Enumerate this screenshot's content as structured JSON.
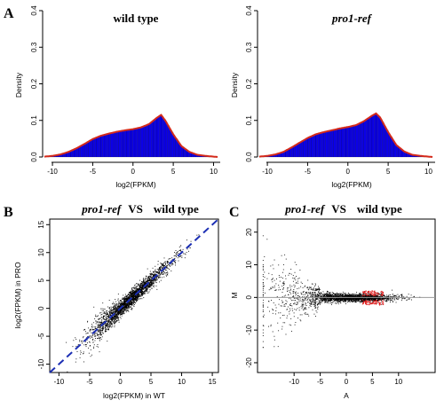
{
  "panels": {
    "A": {
      "letter": "A"
    },
    "B": {
      "letter": "B"
    },
    "C": {
      "letter": "C"
    }
  },
  "colors": {
    "bar": "#0b00e8",
    "density_line": "#d42a1b",
    "point": "#000000",
    "highlight": "#e01c1c",
    "diagonal": "#1c2fb4",
    "hline": "#999999"
  },
  "chart_data": [
    {
      "id": "hist-wt",
      "type": "histogram",
      "title": "wild type",
      "xlabel": "log2(FPKM)",
      "ylabel": "Density",
      "xlim": [
        -11,
        10.5
      ],
      "ylim": [
        0,
        0.4
      ],
      "xticks": [
        -10,
        -5,
        0,
        5,
        10
      ],
      "yticks": [
        0.0,
        0.1,
        0.2,
        0.3,
        0.4
      ],
      "density": {
        "x": [
          -11,
          -10,
          -9,
          -8,
          -7,
          -6,
          -5,
          -4,
          -3,
          -2,
          -1,
          0,
          1,
          2,
          3,
          3.5,
          4,
          5,
          6,
          7,
          8,
          9,
          10,
          10.5
        ],
        "y": [
          0.001,
          0.003,
          0.007,
          0.014,
          0.024,
          0.036,
          0.049,
          0.058,
          0.064,
          0.069,
          0.073,
          0.076,
          0.081,
          0.09,
          0.108,
          0.115,
          0.1,
          0.062,
          0.03,
          0.014,
          0.006,
          0.003,
          0.001,
          0.0
        ]
      }
    },
    {
      "id": "hist-pro",
      "type": "histogram",
      "title": "pro1-ref",
      "xlabel": "log2(FPKM)",
      "ylabel": "Density",
      "xlim": [
        -11,
        10.5
      ],
      "ylim": [
        0,
        0.4
      ],
      "xticks": [
        -10,
        -5,
        0,
        5,
        10
      ],
      "yticks": [
        0.0,
        0.1,
        0.2,
        0.3,
        0.4
      ],
      "density": {
        "x": [
          -11,
          -10,
          -9,
          -8,
          -7,
          -6,
          -5,
          -4,
          -3,
          -2,
          -1,
          0,
          1,
          2,
          3,
          3.5,
          4,
          5,
          6,
          7,
          8,
          9,
          10,
          10.5
        ],
        "y": [
          0.001,
          0.003,
          0.007,
          0.014,
          0.026,
          0.039,
          0.052,
          0.062,
          0.068,
          0.073,
          0.078,
          0.082,
          0.087,
          0.098,
          0.113,
          0.119,
          0.108,
          0.068,
          0.033,
          0.015,
          0.006,
          0.003,
          0.001,
          0.0
        ]
      }
    },
    {
      "id": "scatter-b",
      "type": "scatter",
      "title_italic": "pro1-ref",
      "title_vs": "VS",
      "title_rest": "wild type",
      "xlabel": "log2(FPKM) in WT",
      "ylabel": "log2(FPKM) in PRO",
      "xlim": [
        -11.5,
        16
      ],
      "ylim": [
        -11.5,
        16
      ],
      "xticks": [
        -10,
        -5,
        0,
        5,
        10,
        15
      ],
      "yticks": [
        -10,
        -5,
        0,
        5,
        10,
        15
      ],
      "diagonal": "y = x",
      "points": "dense cloud along y = x, center near (1.5, 1.5), spread wider at low values"
    },
    {
      "id": "ma-c",
      "type": "scatter",
      "title_italic": "pro1-ref",
      "title_vs": "VS",
      "title_rest": "wild type",
      "xlabel": "A",
      "ylabel": "M",
      "xlim": [
        -17,
        17
      ],
      "ylim": [
        -23,
        24
      ],
      "xticks": [
        -10,
        -5,
        0,
        5,
        10
      ],
      "yticks": [
        -20,
        -10,
        0,
        10,
        20
      ],
      "hline": 0,
      "points": "funnel shape: wide spread at low A, narrow band around M = 0 for A > -6; red highlighted points near A = 3 to 7"
    }
  ]
}
